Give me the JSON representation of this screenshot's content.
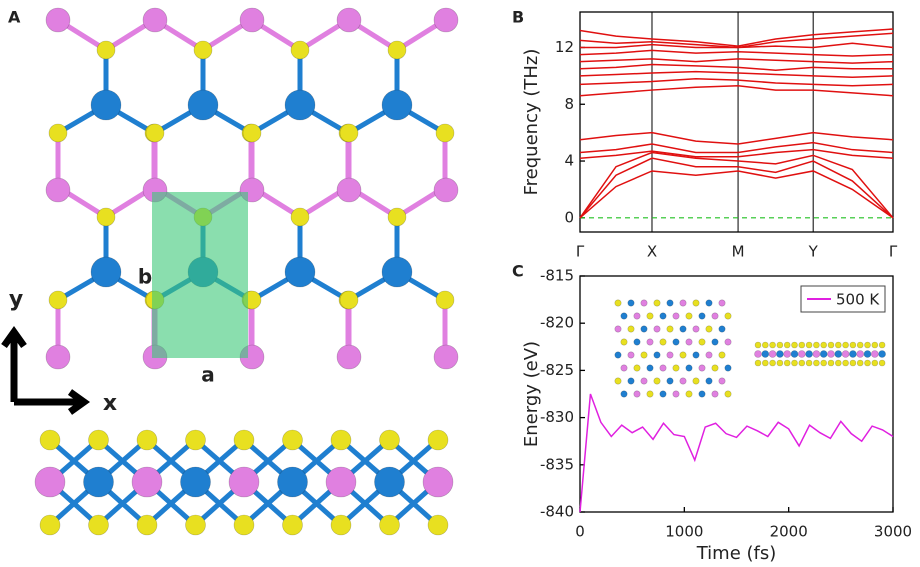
{
  "panel_a": {
    "label": "A",
    "lattice_a": "a",
    "lattice_b": "b",
    "axis_x": "x",
    "axis_y": "y"
  },
  "chart_data": [
    {
      "type": "line",
      "panel": "B",
      "ylabel": "Frequency (THz)",
      "color": "#e01010",
      "xlim": [
        0,
        1
      ],
      "ylim": [
        -1,
        14.5
      ],
      "xticks": [
        {
          "value": 0,
          "label": "Γ"
        },
        {
          "value": 0.23,
          "label": "X"
        },
        {
          "value": 0.505,
          "label": "M"
        },
        {
          "value": 0.745,
          "label": "Y"
        },
        {
          "value": 1,
          "label": "Γ"
        }
      ],
      "yticks": [
        0,
        4,
        8,
        12
      ],
      "reference_line": 0,
      "x": [
        0,
        0.115,
        0.23,
        0.37,
        0.505,
        0.625,
        0.745,
        0.87,
        1
      ],
      "series": [
        {
          "values": [
            0,
            2.2,
            3.3,
            3.0,
            3.3,
            2.8,
            3.3,
            2.0,
            0
          ]
        },
        {
          "values": [
            0,
            3.0,
            4.2,
            3.6,
            3.6,
            3.2,
            4.0,
            2.6,
            0
          ]
        },
        {
          "values": [
            0,
            3.6,
            4.6,
            4.2,
            4.0,
            3.8,
            4.4,
            3.4,
            0
          ]
        },
        {
          "values": [
            4.2,
            4.4,
            4.7,
            4.3,
            4.3,
            4.6,
            4.8,
            4.4,
            4.2
          ]
        },
        {
          "values": [
            4.6,
            4.8,
            5.2,
            4.6,
            4.6,
            5.0,
            5.3,
            4.8,
            4.6
          ]
        },
        {
          "values": [
            5.5,
            5.8,
            6.0,
            5.4,
            5.2,
            5.6,
            6.0,
            5.7,
            5.5
          ]
        },
        {
          "values": [
            8.6,
            8.8,
            9.0,
            9.2,
            9.3,
            9.0,
            9.0,
            8.8,
            8.6
          ]
        },
        {
          "values": [
            9.4,
            9.5,
            9.6,
            9.8,
            9.7,
            9.5,
            9.4,
            9.3,
            9.4
          ]
        },
        {
          "values": [
            10.0,
            10.1,
            10.2,
            10.3,
            10.2,
            10.1,
            10.0,
            9.9,
            10.0
          ]
        },
        {
          "values": [
            10.5,
            10.6,
            10.8,
            10.7,
            10.6,
            10.4,
            10.6,
            10.5,
            10.5
          ]
        },
        {
          "values": [
            11.0,
            11.1,
            11.2,
            11.0,
            11.2,
            11.1,
            11.0,
            10.9,
            11.0
          ]
        },
        {
          "values": [
            11.5,
            11.6,
            11.8,
            11.6,
            11.7,
            11.6,
            11.5,
            11.4,
            11.5
          ]
        },
        {
          "values": [
            12.0,
            12.0,
            12.2,
            12.0,
            12.0,
            12.1,
            12.0,
            12.3,
            12.0
          ]
        },
        {
          "values": [
            12.5,
            12.3,
            12.4,
            12.2,
            12.0,
            12.4,
            12.6,
            12.8,
            13.0
          ]
        },
        {
          "values": [
            13.2,
            12.8,
            12.6,
            12.4,
            12.1,
            12.6,
            12.9,
            13.1,
            13.3
          ]
        }
      ]
    },
    {
      "type": "line",
      "panel": "C",
      "xlabel": "Time (fs)",
      "ylabel": "Energy (eV)",
      "xlim": [
        0,
        3000
      ],
      "ylim": [
        -840,
        -815
      ],
      "xticks": [
        0,
        1000,
        2000,
        3000
      ],
      "yticks": [
        -840,
        -835,
        -830,
        -825,
        -820,
        -815
      ],
      "legend": "upper right",
      "x": [
        0,
        100,
        200,
        300,
        400,
        500,
        600,
        700,
        800,
        900,
        1000,
        1100,
        1200,
        1300,
        1400,
        1500,
        1600,
        1700,
        1800,
        1900,
        2000,
        2100,
        2200,
        2300,
        2400,
        2500,
        2600,
        2700,
        2800,
        2900,
        3000
      ],
      "series": [
        {
          "name": "500 K",
          "color": "#e020e0",
          "values": [
            -840,
            -827.5,
            -830.5,
            -832,
            -830.8,
            -831.6,
            -831,
            -832.3,
            -830.6,
            -831.8,
            -832,
            -834.5,
            -831,
            -830.6,
            -831.7,
            -832.1,
            -830.9,
            -831.4,
            -832,
            -830.5,
            -831.2,
            -833,
            -830.8,
            -831.6,
            -832.2,
            -830.4,
            -831.7,
            -832.5,
            -830.9,
            -831.3,
            -832
          ]
        }
      ]
    }
  ]
}
